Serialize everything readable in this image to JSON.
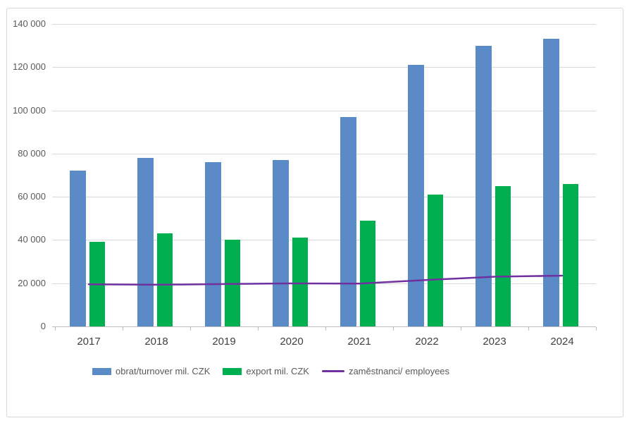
{
  "chart_data": {
    "type": "bar",
    "subtype": "grouped-bars-with-line-overlay",
    "title": "",
    "xlabel": "",
    "ylabel": "",
    "categories": [
      "2017",
      "2018",
      "2019",
      "2020",
      "2021",
      "2022",
      "2023",
      "2024"
    ],
    "series": [
      {
        "name": "obrat/turnover mil. CZK",
        "type": "bar",
        "color": "#5B8BC7",
        "values": [
          72000,
          78000,
          76000,
          77000,
          97000,
          121000,
          130000,
          133000
        ]
      },
      {
        "name": "export mil. CZK",
        "type": "bar",
        "color": "#00B050",
        "values": [
          39000,
          43000,
          40000,
          41000,
          49000,
          61000,
          65000,
          66000
        ]
      },
      {
        "name": "zaměstnanci/ employees",
        "type": "line",
        "color": "#7030A0",
        "values": [
          19500,
          19300,
          19600,
          19900,
          19800,
          21500,
          23000,
          23500
        ]
      }
    ],
    "ylim": [
      0,
      140000
    ],
    "ytick_step": 20000,
    "ytick_labels": [
      "0",
      "20 000",
      "40 000",
      "60 000",
      "80 000",
      "100 000",
      "120 000",
      "140 000"
    ],
    "grid": true,
    "legend_position": "bottom"
  },
  "colors": {
    "background": "#FFFFFF",
    "frame_border": "#D7D7D7",
    "gridline": "#D9D9D9",
    "axis_line": "#BFBFBF",
    "y_tick_text": "#595959",
    "x_label_text": "#404040",
    "legend_text": "#595959"
  }
}
